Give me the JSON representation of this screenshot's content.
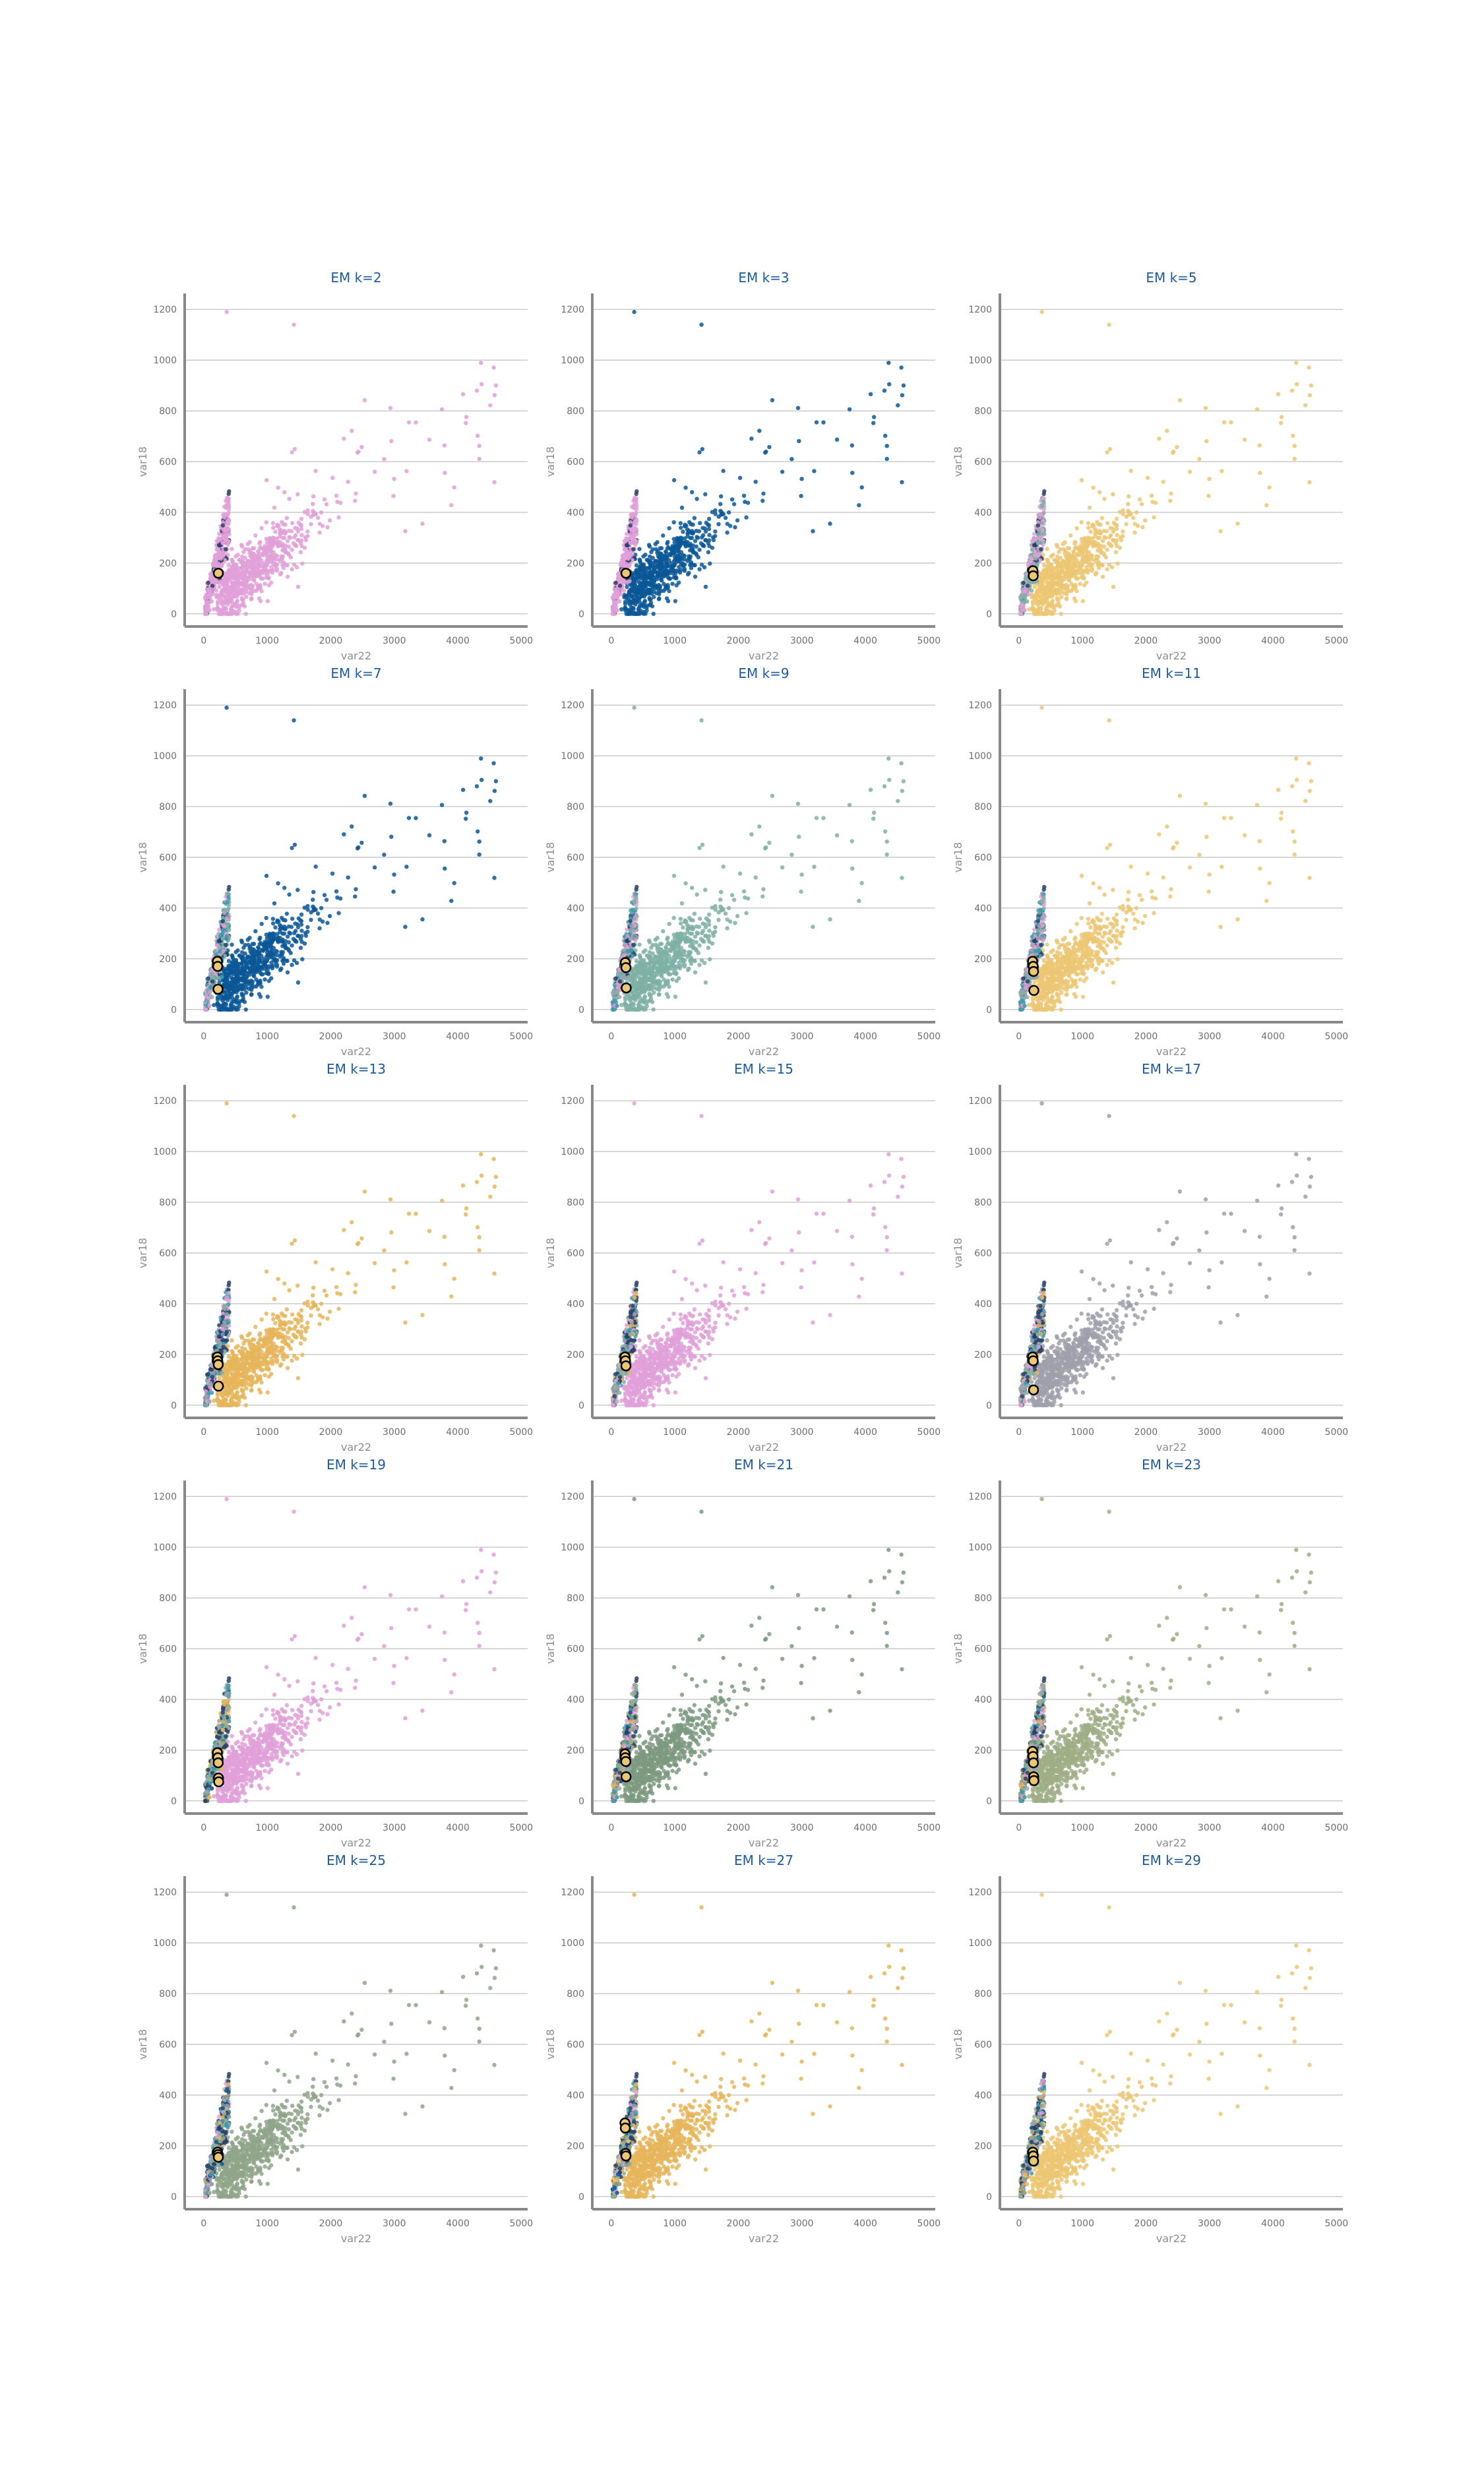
{
  "colors": {
    "pink": "#e0a0d8",
    "blue": "#0b5796",
    "yellow": "#ecc773",
    "gold": "#e6b55a",
    "teal": "#7fb0a5",
    "sage": "#8fa58a",
    "green": "#7d9a80",
    "gray": "#a0a0ac",
    "olive": "#9fae86",
    "cyan": "#3b9bb0",
    "dark": "#2a3f6a",
    "axis": "#888888",
    "grid": "#cccccc",
    "title": "#1e5b9c"
  },
  "chart_data": [
    {
      "type": "scatter",
      "title": "EM k=2",
      "xlabel": "var22",
      "ylabel": "var18",
      "xlim": [
        -300,
        5100
      ],
      "ylim": [
        -50,
        1250
      ],
      "xticks": [
        "0",
        "1000",
        "2000",
        "3000",
        "4000",
        "5000"
      ],
      "yticks": [
        "0",
        "200",
        "400",
        "600",
        "800",
        "1000",
        "1200"
      ],
      "grid": "horizontal",
      "dominant_cluster_color": "pink",
      "centers": [
        [
          230,
          160
        ]
      ]
    },
    {
      "type": "scatter",
      "title": "EM k=3",
      "xlabel": "var22",
      "ylabel": "var18",
      "xlim": [
        -300,
        5100
      ],
      "ylim": [
        -50,
        1250
      ],
      "xticks": [
        "0",
        "1000",
        "2000",
        "3000",
        "4000",
        "5000"
      ],
      "yticks": [
        "0",
        "200",
        "400",
        "600",
        "800",
        "1000",
        "1200"
      ],
      "grid": "horizontal",
      "dominant_cluster_color": "blue",
      "centers": [
        [
          230,
          160
        ]
      ]
    },
    {
      "type": "scatter",
      "title": "EM k=5",
      "xlabel": "var22",
      "ylabel": "var18",
      "xlim": [
        -300,
        5100
      ],
      "ylim": [
        -50,
        1250
      ],
      "xticks": [
        "0",
        "1000",
        "2000",
        "3000",
        "4000",
        "5000"
      ],
      "yticks": [
        "0",
        "200",
        "400",
        "600",
        "800",
        "1000",
        "1200"
      ],
      "grid": "horizontal",
      "dominant_cluster_color": "yellow",
      "centers": [
        [
          220,
          170
        ],
        [
          225,
          150
        ]
      ]
    },
    {
      "type": "scatter",
      "title": "EM k=7",
      "xlabel": "var22",
      "ylabel": "var18",
      "xlim": [
        -300,
        5100
      ],
      "ylim": [
        -50,
        1250
      ],
      "xticks": [
        "0",
        "1000",
        "2000",
        "3000",
        "4000",
        "5000"
      ],
      "yticks": [
        "0",
        "200",
        "400",
        "600",
        "800",
        "1000",
        "1200"
      ],
      "grid": "horizontal",
      "dominant_cluster_color": "blue",
      "centers": [
        [
          215,
          190
        ],
        [
          220,
          170
        ],
        [
          225,
          80
        ]
      ]
    },
    {
      "type": "scatter",
      "title": "EM k=9",
      "xlabel": "var22",
      "ylabel": "var18",
      "xlim": [
        -300,
        5100
      ],
      "ylim": [
        -50,
        1250
      ],
      "xticks": [
        "0",
        "1000",
        "2000",
        "3000",
        "4000",
        "5000"
      ],
      "yticks": [
        "0",
        "200",
        "400",
        "600",
        "800",
        "1000",
        "1200"
      ],
      "grid": "horizontal",
      "dominant_cluster_color": "teal",
      "centers": [
        [
          220,
          185
        ],
        [
          230,
          165
        ],
        [
          235,
          85
        ]
      ]
    },
    {
      "type": "scatter",
      "title": "EM k=11",
      "xlabel": "var22",
      "ylabel": "var18",
      "xlim": [
        -300,
        5100
      ],
      "ylim": [
        -50,
        1250
      ],
      "xticks": [
        "0",
        "1000",
        "2000",
        "3000",
        "4000",
        "5000"
      ],
      "yticks": [
        "0",
        "200",
        "400",
        "600",
        "800",
        "1000",
        "1200"
      ],
      "grid": "horizontal",
      "dominant_cluster_color": "yellow",
      "centers": [
        [
          215,
          190
        ],
        [
          225,
          170
        ],
        [
          230,
          150
        ],
        [
          235,
          75
        ]
      ]
    },
    {
      "type": "scatter",
      "title": "EM k=13",
      "xlabel": "var22",
      "ylabel": "var18",
      "xlim": [
        -300,
        5100
      ],
      "ylim": [
        -50,
        1250
      ],
      "xticks": [
        "0",
        "1000",
        "2000",
        "3000",
        "4000",
        "5000"
      ],
      "yticks": [
        "0",
        "200",
        "400",
        "600",
        "800",
        "1000",
        "1200"
      ],
      "grid": "horizontal",
      "dominant_cluster_color": "gold",
      "centers": [
        [
          215,
          190
        ],
        [
          220,
          175
        ],
        [
          228,
          160
        ],
        [
          232,
          75
        ]
      ]
    },
    {
      "type": "scatter",
      "title": "EM k=15",
      "xlabel": "var22",
      "ylabel": "var18",
      "xlim": [
        -300,
        5100
      ],
      "ylim": [
        -50,
        1250
      ],
      "xticks": [
        "0",
        "1000",
        "2000",
        "3000",
        "4000",
        "5000"
      ],
      "yticks": [
        "0",
        "200",
        "400",
        "600",
        "800",
        "1000",
        "1200"
      ],
      "grid": "horizontal",
      "dominant_cluster_color": "pink",
      "centers": [
        [
          215,
          190
        ],
        [
          222,
          175
        ],
        [
          230,
          155
        ]
      ]
    },
    {
      "type": "scatter",
      "title": "EM k=17",
      "xlabel": "var22",
      "ylabel": "var18",
      "xlim": [
        -300,
        5100
      ],
      "ylim": [
        -50,
        1250
      ],
      "xticks": [
        "0",
        "1000",
        "2000",
        "3000",
        "4000",
        "5000"
      ],
      "yticks": [
        "0",
        "200",
        "400",
        "600",
        "800",
        "1000",
        "1200"
      ],
      "grid": "horizontal",
      "dominant_cluster_color": "gray",
      "centers": [
        [
          215,
          190
        ],
        [
          225,
          175
        ],
        [
          230,
          60
        ]
      ]
    },
    {
      "type": "scatter",
      "title": "EM k=19",
      "xlabel": "var22",
      "ylabel": "var18",
      "xlim": [
        -300,
        5100
      ],
      "ylim": [
        -50,
        1250
      ],
      "xticks": [
        "0",
        "1000",
        "2000",
        "3000",
        "4000",
        "5000"
      ],
      "yticks": [
        "0",
        "200",
        "400",
        "600",
        "800",
        "1000",
        "1200"
      ],
      "grid": "horizontal",
      "dominant_cluster_color": "pink",
      "centers": [
        [
          215,
          190
        ],
        [
          222,
          170
        ],
        [
          228,
          150
        ],
        [
          232,
          90
        ],
        [
          236,
          75
        ]
      ]
    },
    {
      "type": "scatter",
      "title": "EM k=21",
      "xlabel": "var22",
      "ylabel": "var18",
      "xlim": [
        -300,
        5100
      ],
      "ylim": [
        -50,
        1250
      ],
      "xticks": [
        "0",
        "1000",
        "2000",
        "3000",
        "4000",
        "5000"
      ],
      "yticks": [
        "0",
        "200",
        "400",
        "600",
        "800",
        "1000",
        "1200"
      ],
      "grid": "horizontal",
      "dominant_cluster_color": "green",
      "centers": [
        [
          215,
          185
        ],
        [
          220,
          170
        ],
        [
          228,
          155
        ],
        [
          232,
          95
        ]
      ]
    },
    {
      "type": "scatter",
      "title": "EM k=23",
      "xlabel": "var22",
      "ylabel": "var18",
      "xlim": [
        -300,
        5100
      ],
      "ylim": [
        -50,
        1250
      ],
      "xticks": [
        "0",
        "1000",
        "2000",
        "3000",
        "4000",
        "5000"
      ],
      "yticks": [
        "0",
        "200",
        "400",
        "600",
        "800",
        "1000",
        "1200"
      ],
      "grid": "horizontal",
      "dominant_cluster_color": "olive",
      "centers": [
        [
          215,
          195
        ],
        [
          222,
          175
        ],
        [
          228,
          150
        ],
        [
          232,
          95
        ],
        [
          236,
          80
        ]
      ]
    },
    {
      "type": "scatter",
      "title": "EM k=25",
      "xlabel": "var22",
      "ylabel": "var18",
      "xlim": [
        -300,
        5100
      ],
      "ylim": [
        -50,
        1250
      ],
      "xticks": [
        "0",
        "1000",
        "2000",
        "3000",
        "4000",
        "5000"
      ],
      "yticks": [
        "0",
        "200",
        "400",
        "600",
        "800",
        "1000",
        "1200"
      ],
      "grid": "horizontal",
      "dominant_cluster_color": "sage",
      "centers": [
        [
          218,
          175
        ],
        [
          225,
          165
        ],
        [
          230,
          155
        ]
      ]
    },
    {
      "type": "scatter",
      "title": "EM k=27",
      "xlabel": "var22",
      "ylabel": "var18",
      "xlim": [
        -300,
        5100
      ],
      "ylim": [
        -50,
        1250
      ],
      "xticks": [
        "0",
        "1000",
        "2000",
        "3000",
        "4000",
        "5000"
      ],
      "yticks": [
        "0",
        "200",
        "400",
        "600",
        "800",
        "1000",
        "1200"
      ],
      "grid": "horizontal",
      "dominant_cluster_color": "gold",
      "centers": [
        [
          215,
          290
        ],
        [
          220,
          270
        ],
        [
          225,
          170
        ],
        [
          230,
          160
        ]
      ]
    },
    {
      "type": "scatter",
      "title": "EM k=29",
      "xlabel": "var22",
      "ylabel": "var18",
      "xlim": [
        -300,
        5100
      ],
      "ylim": [
        -50,
        1250
      ],
      "xticks": [
        "0",
        "1000",
        "2000",
        "3000",
        "4000",
        "5000"
      ],
      "yticks": [
        "0",
        "200",
        "400",
        "600",
        "800",
        "1000",
        "1200"
      ],
      "grid": "horizontal",
      "dominant_cluster_color": "yellow",
      "centers": [
        [
          218,
          175
        ],
        [
          225,
          160
        ],
        [
          230,
          140
        ]
      ]
    }
  ]
}
